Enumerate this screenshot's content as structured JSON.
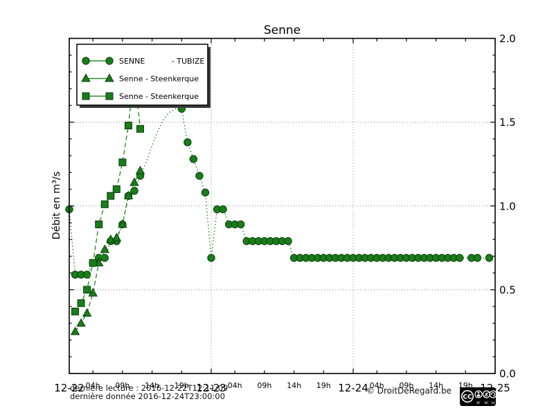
{
  "chart_data": {
    "type": "line",
    "title": "Senne",
    "x_axis": {
      "range_hours": [
        0,
        72
      ],
      "days": [
        {
          "label": "12-22",
          "hour": 0
        },
        {
          "label": "12-23",
          "hour": 24
        },
        {
          "label": "12-24",
          "hour": 48
        },
        {
          "label": "12-25",
          "hour": 72
        }
      ],
      "hour_tick_offsets": [
        4,
        9,
        14,
        19
      ],
      "hour_tick_labels": [
        "04h",
        "09h",
        "14h",
        "19h"
      ],
      "grid_hours": [
        24,
        48
      ]
    },
    "y_axis": {
      "label": "Débit en m³/s",
      "range": [
        0.0,
        2.0
      ],
      "ticks": [
        0.0,
        0.5,
        1.0,
        1.5,
        2.0
      ],
      "tick_labels": [
        "0.0",
        "0.5",
        "1.0",
        "1.5",
        "2.0"
      ],
      "minor_step": 0.1,
      "grid_values": [
        0.5,
        1.0,
        1.5
      ],
      "labels_side": "right"
    },
    "legend": {
      "position": "upper-left",
      "shadow": true
    },
    "series": [
      {
        "name": "SENNE - TUBIZE",
        "legend_label": "SENNE           - TUBIZE",
        "marker": "circle",
        "line_dash": "dotted",
        "points": [
          [
            0,
            0.98
          ],
          [
            1,
            0.59
          ],
          [
            2,
            0.59
          ],
          [
            3,
            0.59
          ],
          [
            4,
            0.66
          ],
          [
            5,
            0.69
          ],
          [
            6,
            0.69
          ],
          [
            7,
            0.79
          ],
          [
            8,
            0.79
          ],
          [
            9,
            0.89
          ],
          [
            10,
            1.06
          ],
          [
            11,
            1.09
          ],
          [
            12,
            1.18
          ],
          [
            19,
            1.58
          ],
          [
            20,
            1.38
          ],
          [
            21,
            1.28
          ],
          [
            22,
            1.18
          ],
          [
            23,
            1.08
          ],
          [
            24,
            0.69
          ],
          [
            25,
            0.98
          ],
          [
            26,
            0.98
          ],
          [
            27,
            0.89
          ],
          [
            28,
            0.89
          ],
          [
            29,
            0.89
          ],
          [
            30,
            0.79
          ],
          [
            31,
            0.79
          ],
          [
            32,
            0.79
          ],
          [
            33,
            0.79
          ],
          [
            34,
            0.79
          ],
          [
            35,
            0.79
          ],
          [
            36,
            0.79
          ],
          [
            37,
            0.79
          ],
          [
            38,
            0.69
          ],
          [
            39,
            0.69
          ],
          [
            40,
            0.69
          ],
          [
            41,
            0.69
          ],
          [
            42,
            0.69
          ],
          [
            43,
            0.69
          ],
          [
            44,
            0.69
          ],
          [
            45,
            0.69
          ],
          [
            46,
            0.69
          ],
          [
            47,
            0.69
          ],
          [
            48,
            0.69
          ],
          [
            49,
            0.69
          ],
          [
            50,
            0.69
          ],
          [
            51,
            0.69
          ],
          [
            52,
            0.69
          ],
          [
            53,
            0.69
          ],
          [
            54,
            0.69
          ],
          [
            55,
            0.69
          ],
          [
            56,
            0.69
          ],
          [
            57,
            0.69
          ],
          [
            58,
            0.69
          ],
          [
            59,
            0.69
          ],
          [
            60,
            0.69
          ],
          [
            61,
            0.69
          ],
          [
            62,
            0.69
          ],
          [
            63,
            0.69
          ],
          [
            64,
            0.69
          ],
          [
            65,
            0.69
          ],
          [
            66,
            0.69
          ],
          [
            68,
            0.69
          ],
          [
            69,
            0.69
          ],
          [
            71,
            0.69
          ]
        ],
        "extra_line_points": [
          [
            13,
            1.26
          ],
          [
            14,
            1.36
          ],
          [
            15,
            1.45
          ],
          [
            16,
            1.52
          ],
          [
            17,
            1.56
          ],
          [
            18,
            1.58
          ]
        ]
      },
      {
        "name": "Senne - Steenkerque",
        "legend_label": "Senne - Steenkerque",
        "marker": "triangle",
        "line_dash": "dashed",
        "points": [
          [
            1,
            0.25
          ],
          [
            2,
            0.3
          ],
          [
            3,
            0.36
          ],
          [
            4,
            0.48
          ],
          [
            5,
            0.66
          ],
          [
            6,
            0.74
          ],
          [
            7,
            0.8
          ],
          [
            8,
            0.81
          ],
          [
            9,
            0.89
          ],
          [
            10,
            1.06
          ],
          [
            11,
            1.14
          ],
          [
            12,
            1.21
          ]
        ],
        "extra_line_points": []
      },
      {
        "name": "Senne - Steenkerque",
        "legend_label": "Senne - Steenkerque",
        "marker": "square",
        "line_dash": "dashed",
        "points": [
          [
            1,
            0.37
          ],
          [
            2,
            0.42
          ],
          [
            3,
            0.5
          ],
          [
            4,
            0.66
          ],
          [
            5,
            0.89
          ],
          [
            6,
            1.01
          ],
          [
            7,
            1.06
          ],
          [
            8,
            1.1
          ],
          [
            9,
            1.26
          ],
          [
            10,
            1.48
          ],
          [
            12,
            1.46
          ]
        ],
        "extra_line_points": [
          [
            11,
            1.8
          ]
        ]
      }
    ],
    "colors": {
      "marker_fill": "#1a7d1a",
      "marker_edge": "#0b3d0b",
      "line": "#2e8e2e",
      "grid": "#808080",
      "axis": "#000000"
    }
  },
  "footer": {
    "line1": "dernière lecture : 2016-12-22T12:11:09",
    "line2": "dernière donnée  2016-12-24T23:00:00",
    "copyright": "© DroitDeRegard.be"
  },
  "cc_badge": {
    "cc": "CC",
    "labels": [
      "BY",
      "NC",
      "SA"
    ]
  }
}
